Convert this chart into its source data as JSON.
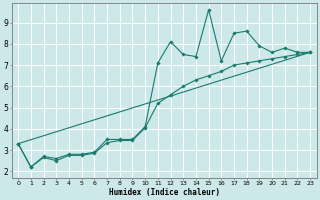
{
  "xlabel": "Humidex (Indice chaleur)",
  "bg_color": "#cce8e8",
  "grid_color": "#ffffff",
  "line_color": "#1a7a6e",
  "xlim": [
    -0.5,
    23.5
  ],
  "ylim": [
    1.7,
    9.9
  ],
  "xticks": [
    0,
    1,
    2,
    3,
    4,
    5,
    6,
    7,
    8,
    9,
    10,
    11,
    12,
    13,
    14,
    15,
    16,
    17,
    18,
    19,
    20,
    21,
    22,
    23
  ],
  "yticks": [
    2,
    3,
    4,
    5,
    6,
    7,
    8,
    9
  ],
  "line1_x": [
    0,
    1,
    2,
    3,
    4,
    5,
    6,
    7,
    8,
    9,
    10,
    11,
    12,
    13,
    14,
    15,
    16,
    17,
    18,
    19,
    20,
    21,
    22,
    23
  ],
  "line1_y": [
    3.3,
    2.2,
    2.7,
    2.6,
    2.8,
    2.8,
    2.9,
    3.5,
    3.5,
    3.5,
    4.1,
    7.1,
    8.1,
    7.5,
    7.4,
    9.6,
    7.2,
    8.5,
    8.6,
    7.9,
    7.6,
    7.8,
    7.6,
    7.6
  ],
  "line2_x": [
    0,
    1,
    2,
    3,
    4,
    5,
    6,
    7,
    8,
    9,
    10,
    11,
    12,
    13,
    14,
    15,
    16,
    17,
    18,
    19,
    20,
    21,
    22,
    23
  ],
  "line2_y": [
    3.3,
    2.2,
    2.65,
    2.5,
    2.75,
    2.75,
    2.85,
    3.35,
    3.45,
    3.45,
    4.05,
    5.2,
    5.6,
    6.0,
    6.3,
    6.5,
    6.7,
    7.0,
    7.1,
    7.2,
    7.3,
    7.4,
    7.5,
    7.6
  ],
  "line3_x": [
    0,
    23
  ],
  "line3_y": [
    3.3,
    7.6
  ]
}
